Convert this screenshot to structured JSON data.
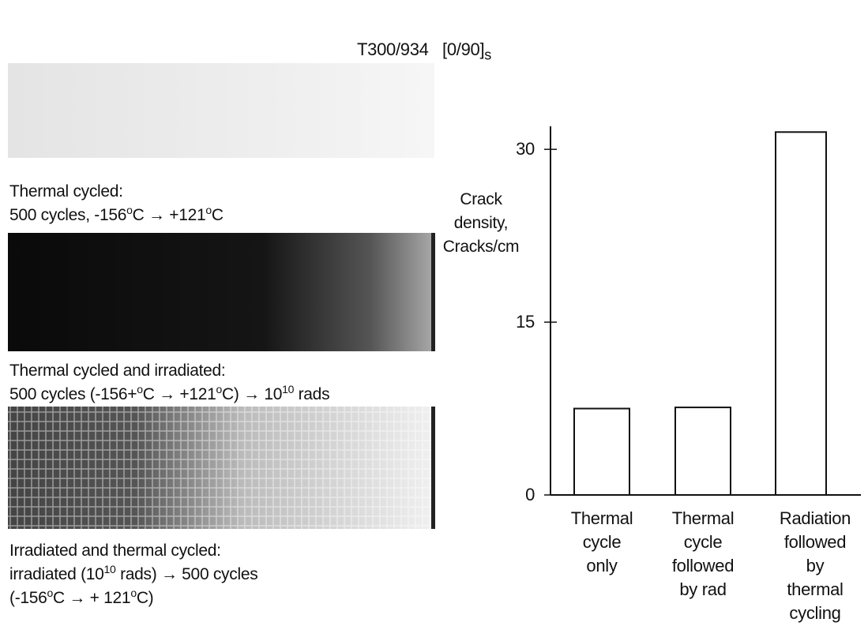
{
  "chart_data": {
    "type": "bar",
    "title": "T300/934",
    "layup": "[0/90]",
    "layup_subscript": "s",
    "ylabel": "Crack\ndensity,\nCracks/cm",
    "categories": [
      "Thermal\ncycle\nonly",
      "Thermal\ncycle\nfollowed\nby rad",
      "Radiation\nfollowed by\nthermal\ncycling"
    ],
    "values": [
      7.5,
      7.6,
      31.5
    ],
    "color": "#ffffff",
    "ylim": [
      0,
      32
    ],
    "yticks": [
      0,
      15,
      30
    ]
  },
  "captions": [
    {
      "lines": [
        [
          {
            "text": "Thermal cycled:"
          }
        ],
        [
          {
            "text": "500 cycles,  -156"
          },
          {
            "text": "o",
            "sup": true
          },
          {
            "text": "C  →  +121"
          },
          {
            "text": "o",
            "sup": true
          },
          {
            "text": "C"
          }
        ]
      ]
    },
    {
      "lines": [
        [
          {
            "text": "Thermal cycled and irradiated:"
          }
        ],
        [
          {
            "text": "500 cycles (-156+"
          },
          {
            "text": "o",
            "sup": true
          },
          {
            "text": "C  →  +121"
          },
          {
            "text": "o",
            "sup": true
          },
          {
            "text": "C) → 10"
          },
          {
            "text": "10",
            "sup": true
          },
          {
            "text": "  rads"
          }
        ]
      ]
    },
    {
      "lines": [
        [
          {
            "text": "Irradiated and thermal cycled:"
          }
        ],
        [
          {
            "text": "irradiated (10"
          },
          {
            "text": "10",
            "sup": true
          },
          {
            "text": " rads) → 500 cycles"
          }
        ],
        [
          {
            "text": "(-156"
          },
          {
            "text": "o",
            "sup": true
          },
          {
            "text": "C  →  + 121"
          },
          {
            "text": "o",
            "sup": true
          },
          {
            "text": "C)"
          }
        ]
      ]
    }
  ]
}
